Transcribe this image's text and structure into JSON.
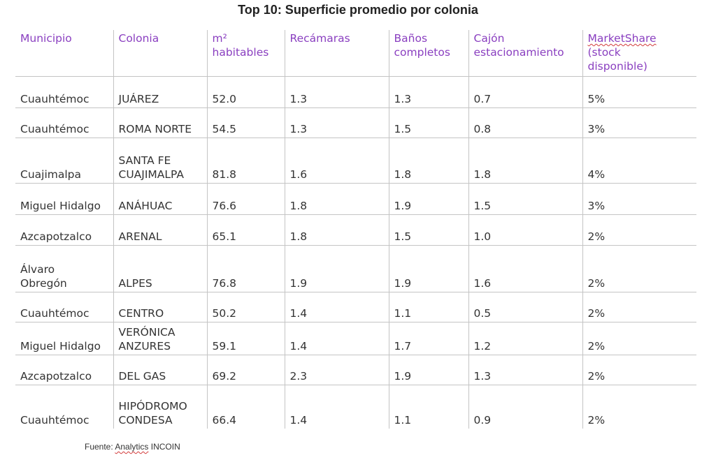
{
  "title": "Top 10: Superficie promedio por colonia",
  "columns": [
    "Municipio",
    "Colonia",
    "m²\nhabitables",
    "Recámaras",
    "Baños\ncompletos",
    "Cajón\nestacionamiento",
    "MarketShare\n(stock\ndisponible)"
  ],
  "rows": [
    [
      "Cuauhtémoc",
      "JUÁREZ",
      "52.0",
      "1.3",
      "1.3",
      "0.7",
      "5%"
    ],
    [
      "Cuauhtémoc",
      "ROMA NORTE",
      "54.5",
      "1.3",
      "1.5",
      "0.8",
      "3%"
    ],
    [
      "Cuajimalpa",
      "SANTA FE\nCUAJIMALPA",
      "81.8",
      "1.6",
      "1.8",
      "1.8",
      "4%"
    ],
    [
      "Miguel Hidalgo",
      "ANÁHUAC",
      "76.6",
      "1.8",
      "1.9",
      "1.5",
      "3%"
    ],
    [
      "Azcapotzalco",
      "ARENAL",
      "65.1",
      "1.8",
      "1.5",
      "1.0",
      "2%"
    ],
    [
      "Álvaro\nObregón",
      "ALPES",
      "76.8",
      "1.9",
      "1.9",
      "1.6",
      "2%"
    ],
    [
      "Cuauhtémoc",
      "CENTRO",
      "50.2",
      "1.4",
      "1.1",
      "0.5",
      "2%"
    ],
    [
      "Miguel Hidalgo",
      "VERÓNICA\nANZURES",
      "59.1",
      "1.4",
      "1.7",
      "1.2",
      "2%"
    ],
    [
      "Azcapotzalco",
      "DEL GAS",
      "69.2",
      "2.3",
      "1.9",
      "1.3",
      "2%"
    ],
    [
      "Cuauhtémoc",
      "HIPÓDROMO\nCONDESA",
      "66.4",
      "1.4",
      "1.1",
      "0.9",
      "2%"
    ]
  ],
  "source": {
    "prefix": "Fuente: ",
    "analytics": "Analytics",
    "suffix": " INCOIN"
  },
  "colors": {
    "header_text": "#8a3fc0",
    "body_text": "#333333",
    "grid_line": "#c4c4c4",
    "spell_squiggle": "#d23a3a"
  }
}
